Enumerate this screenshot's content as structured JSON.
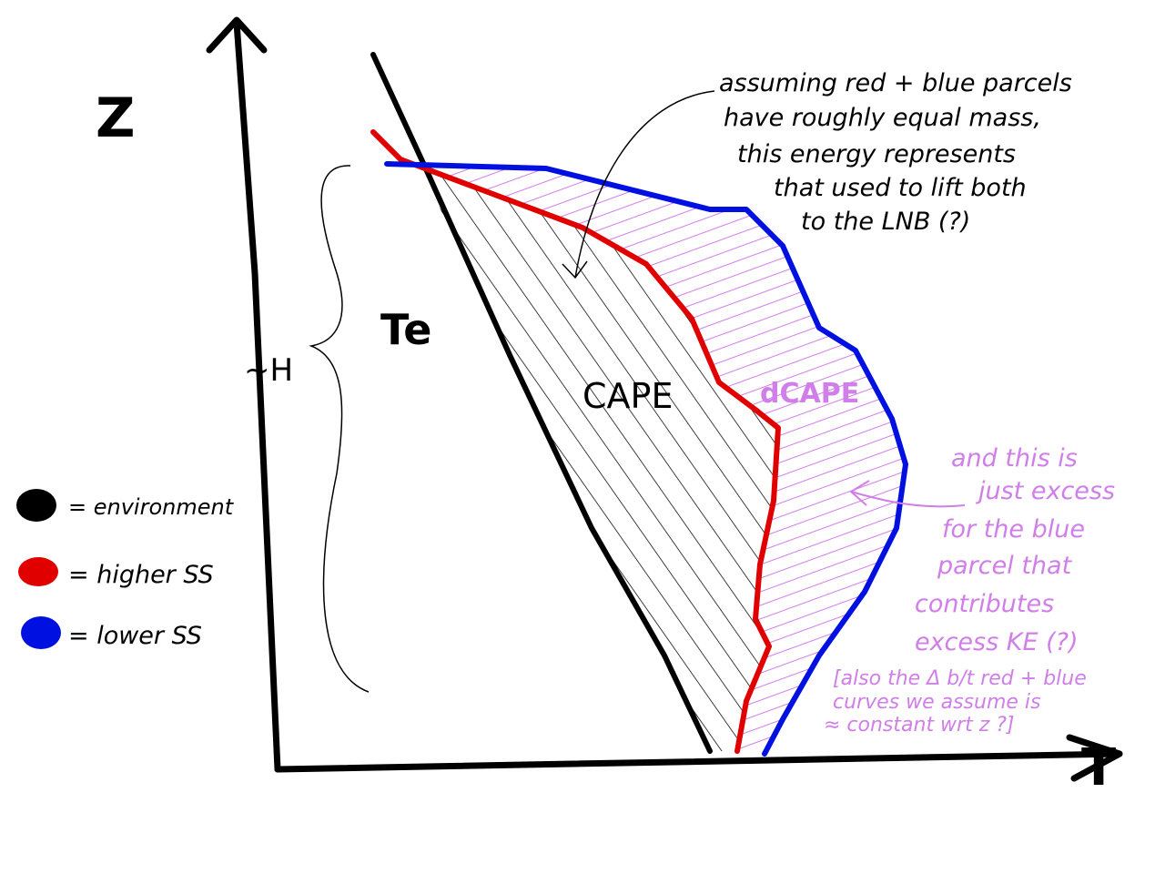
{
  "axes": {
    "y_label": "Z",
    "x_label": "T"
  },
  "labels": {
    "environment_curve": "Te",
    "height": "~H",
    "cape": "CAPE",
    "dcape": "dCAPE"
  },
  "annotation_black": {
    "lines": [
      "assuming red + blue parcels",
      "have roughly equal mass,",
      "this energy represents",
      "that used to lift both",
      "to the LNB (?)"
    ]
  },
  "annotation_pink": {
    "lines": [
      "and this is",
      "just excess",
      "for the blue",
      "parcel that",
      "contributes",
      "excess KE (?)"
    ]
  },
  "annotation_bracket": {
    "lines": [
      "[also the Δ b/t red + blue",
      "curves we assume is",
      "≈ constant wrt z ?]"
    ]
  },
  "legend": {
    "items": [
      "= environment",
      "= higher SS",
      "= lower SS"
    ]
  }
}
